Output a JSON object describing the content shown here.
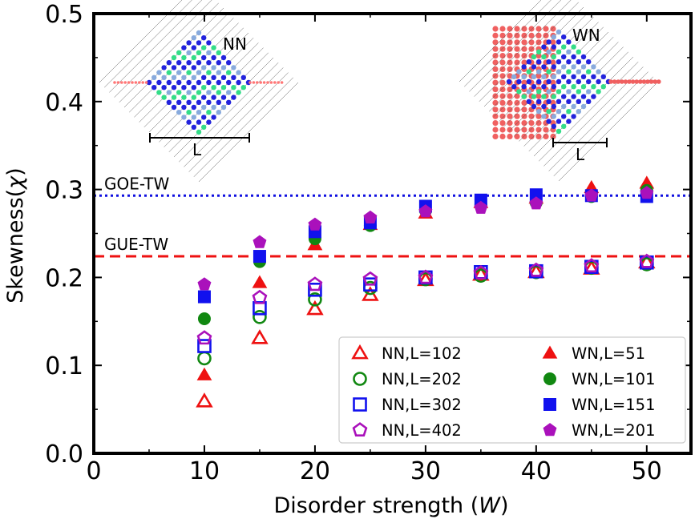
{
  "chart_data": {
    "type": "scatter",
    "xlabel_prefix": "Disorder strength (",
    "xlabel_var": "W",
    "xlabel_suffix": ")",
    "ylabel_prefix": "Skewness(",
    "ylabel_var": "χ",
    "ylabel_suffix": ")",
    "xlim": [
      0,
      54
    ],
    "ylim": [
      0,
      0.5
    ],
    "xticks": [
      0,
      10,
      20,
      30,
      40,
      50
    ],
    "yticks": [
      0.0,
      0.1,
      0.2,
      0.3,
      0.4,
      0.5
    ],
    "xtick_labels": [
      "0",
      "10",
      "20",
      "30",
      "40",
      "50"
    ],
    "ytick_labels": [
      "0.0",
      "0.1",
      "0.2",
      "0.3",
      "0.4",
      "0.5"
    ],
    "reference_lines": [
      {
        "name": "GOE-TW",
        "label": "GOE-TW",
        "y": 0.293,
        "color": "#1010e0",
        "style": "dotted"
      },
      {
        "name": "GUE-TW",
        "label": "GUE-TW",
        "y": 0.224,
        "color": "#ee1111",
        "style": "dashed"
      }
    ],
    "series": [
      {
        "name": "NN,L=102",
        "marker": "triangle",
        "filled": false,
        "color": "#ee1111",
        "x": [
          10,
          15,
          20,
          25,
          30,
          35,
          40,
          45,
          50
        ],
        "y": [
          0.059,
          0.131,
          0.164,
          0.18,
          0.197,
          0.203,
          0.206,
          0.21,
          0.217
        ]
      },
      {
        "name": "NN,L=202",
        "marker": "circle",
        "filled": false,
        "color": "#118811",
        "x": [
          10,
          15,
          20,
          25,
          30,
          35,
          40,
          45,
          50
        ],
        "y": [
          0.108,
          0.155,
          0.175,
          0.188,
          0.198,
          0.202,
          0.206,
          0.211,
          0.215
        ]
      },
      {
        "name": "NN,L=302",
        "marker": "square",
        "filled": false,
        "color": "#1111ee",
        "x": [
          10,
          15,
          20,
          25,
          30,
          35,
          40,
          45,
          50
        ],
        "y": [
          0.122,
          0.165,
          0.186,
          0.192,
          0.2,
          0.206,
          0.207,
          0.212,
          0.217
        ]
      },
      {
        "name": "NN,L=402",
        "marker": "pentagon",
        "filled": false,
        "color": "#aa11bb",
        "x": [
          10,
          15,
          20,
          25,
          30,
          35,
          40,
          45,
          50
        ],
        "y": [
          0.131,
          0.177,
          0.192,
          0.198,
          0.2,
          0.205,
          0.208,
          0.213,
          0.218
        ]
      },
      {
        "name": "WN,L=51",
        "marker": "triangle",
        "filled": true,
        "color": "#ee1111",
        "x": [
          10,
          15,
          20,
          25,
          30,
          35,
          40,
          45,
          50
        ],
        "y": [
          0.089,
          0.194,
          0.237,
          0.26,
          0.273,
          0.285,
          0.29,
          0.302,
          0.307
        ]
      },
      {
        "name": "WN,L=101",
        "marker": "circle",
        "filled": true,
        "color": "#118811",
        "x": [
          10,
          15,
          20,
          25,
          30,
          35,
          40,
          45,
          50
        ],
        "y": [
          0.153,
          0.218,
          0.244,
          0.259,
          0.276,
          0.283,
          0.285,
          0.292,
          0.299
        ]
      },
      {
        "name": "WN,L=151",
        "marker": "square",
        "filled": true,
        "color": "#1111ee",
        "x": [
          10,
          15,
          20,
          25,
          30,
          35,
          40,
          45,
          50
        ],
        "y": [
          0.178,
          0.224,
          0.252,
          0.262,
          0.281,
          0.288,
          0.294,
          0.293,
          0.292
        ]
      },
      {
        "name": "WN,L=201",
        "marker": "pentagon",
        "filled": true,
        "color": "#aa11bb",
        "x": [
          10,
          15,
          20,
          25,
          30,
          35,
          40,
          45,
          50
        ],
        "y": [
          0.192,
          0.24,
          0.26,
          0.268,
          0.275,
          0.279,
          0.284,
          0.293,
          0.296
        ]
      }
    ],
    "legend_position": "lower-right",
    "insets": [
      {
        "name": "NN",
        "label": "NN",
        "scale_label": "L"
      },
      {
        "name": "WN",
        "label": "WN",
        "scale_label": "L"
      }
    ]
  }
}
